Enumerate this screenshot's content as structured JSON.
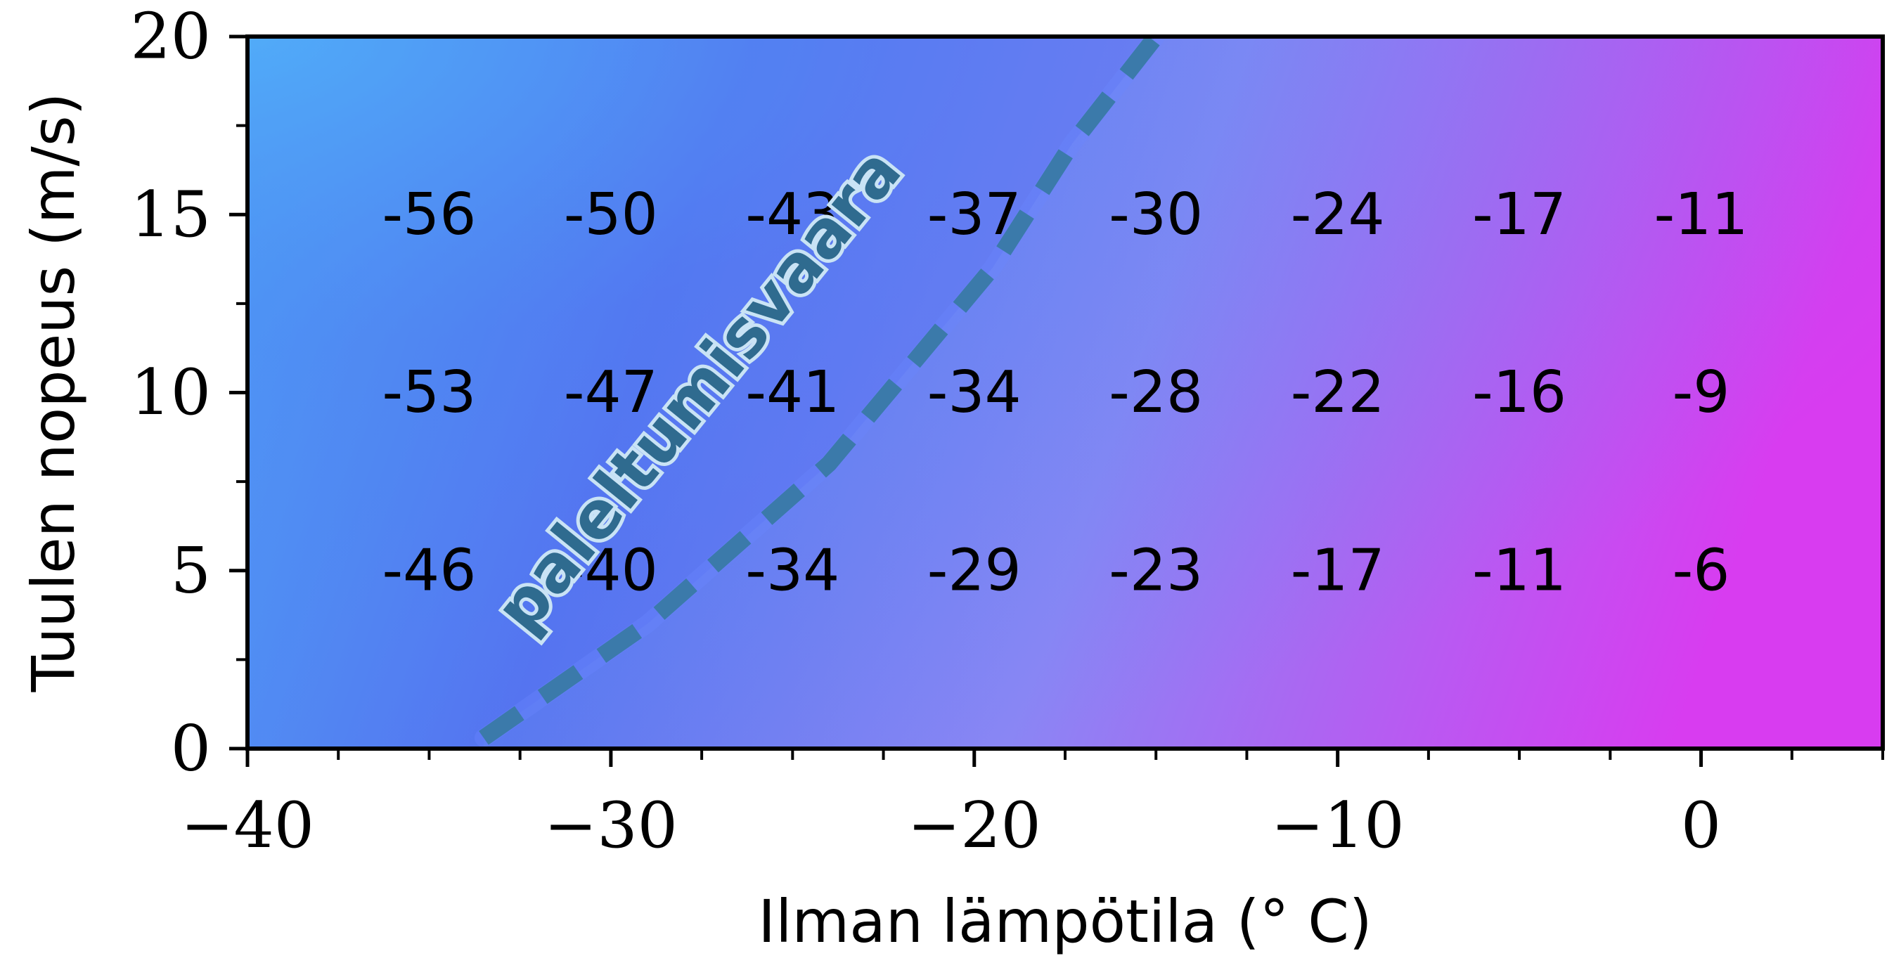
{
  "chart_data": {
    "type": "heatmap",
    "title": "",
    "xlabel": "Ilman lämpötila (° C)",
    "ylabel": "Tuulen nopeus (m/s)",
    "xlim": [
      -40,
      5
    ],
    "ylim": [
      0,
      20
    ],
    "x_ticks": [
      -40,
      -30,
      -20,
      -10,
      0
    ],
    "x_tick_labels": [
      "−40",
      "−30",
      "−20",
      "−10",
      "0"
    ],
    "x_minor_step": 2.5,
    "y_ticks": [
      0,
      5,
      10,
      15,
      20
    ],
    "y_tick_labels": [
      "0",
      "5",
      "10",
      "15",
      "20"
    ],
    "y_minor_step": 2.5,
    "grid": false,
    "colormap": [
      "#4fb8f8",
      "#5a78f0",
      "#8a86f4",
      "#d83cf0"
    ],
    "cells": {
      "x": [
        -35,
        -30,
        -25,
        -20,
        -15,
        -10,
        -5,
        0
      ],
      "rows": [
        {
          "y": 15,
          "values": [
            "-56",
            "-50",
            "-43",
            "-37",
            "-30",
            "-24",
            "-17",
            "-11"
          ]
        },
        {
          "y": 10,
          "values": [
            "-53",
            "-47",
            "-41",
            "-34",
            "-28",
            "-22",
            "-16",
            "-9"
          ]
        },
        {
          "y": 5,
          "values": [
            "-46",
            "-40",
            "-34",
            "-29",
            "-23",
            "-17",
            "-11",
            "-6"
          ]
        }
      ]
    },
    "threshold_line": {
      "style": "dashed",
      "color": "#3b7aaa",
      "points": [
        [
          -33.5,
          0.3
        ],
        [
          -29,
          3.5
        ],
        [
          -24,
          8
        ],
        [
          -19.5,
          13.5
        ],
        [
          -17.3,
          17
        ],
        [
          -15,
          20
        ]
      ]
    },
    "annotations": [
      {
        "text": "paleltumisvaara",
        "x": -27.5,
        "y": 10,
        "rotation_deg": -51
      }
    ]
  }
}
